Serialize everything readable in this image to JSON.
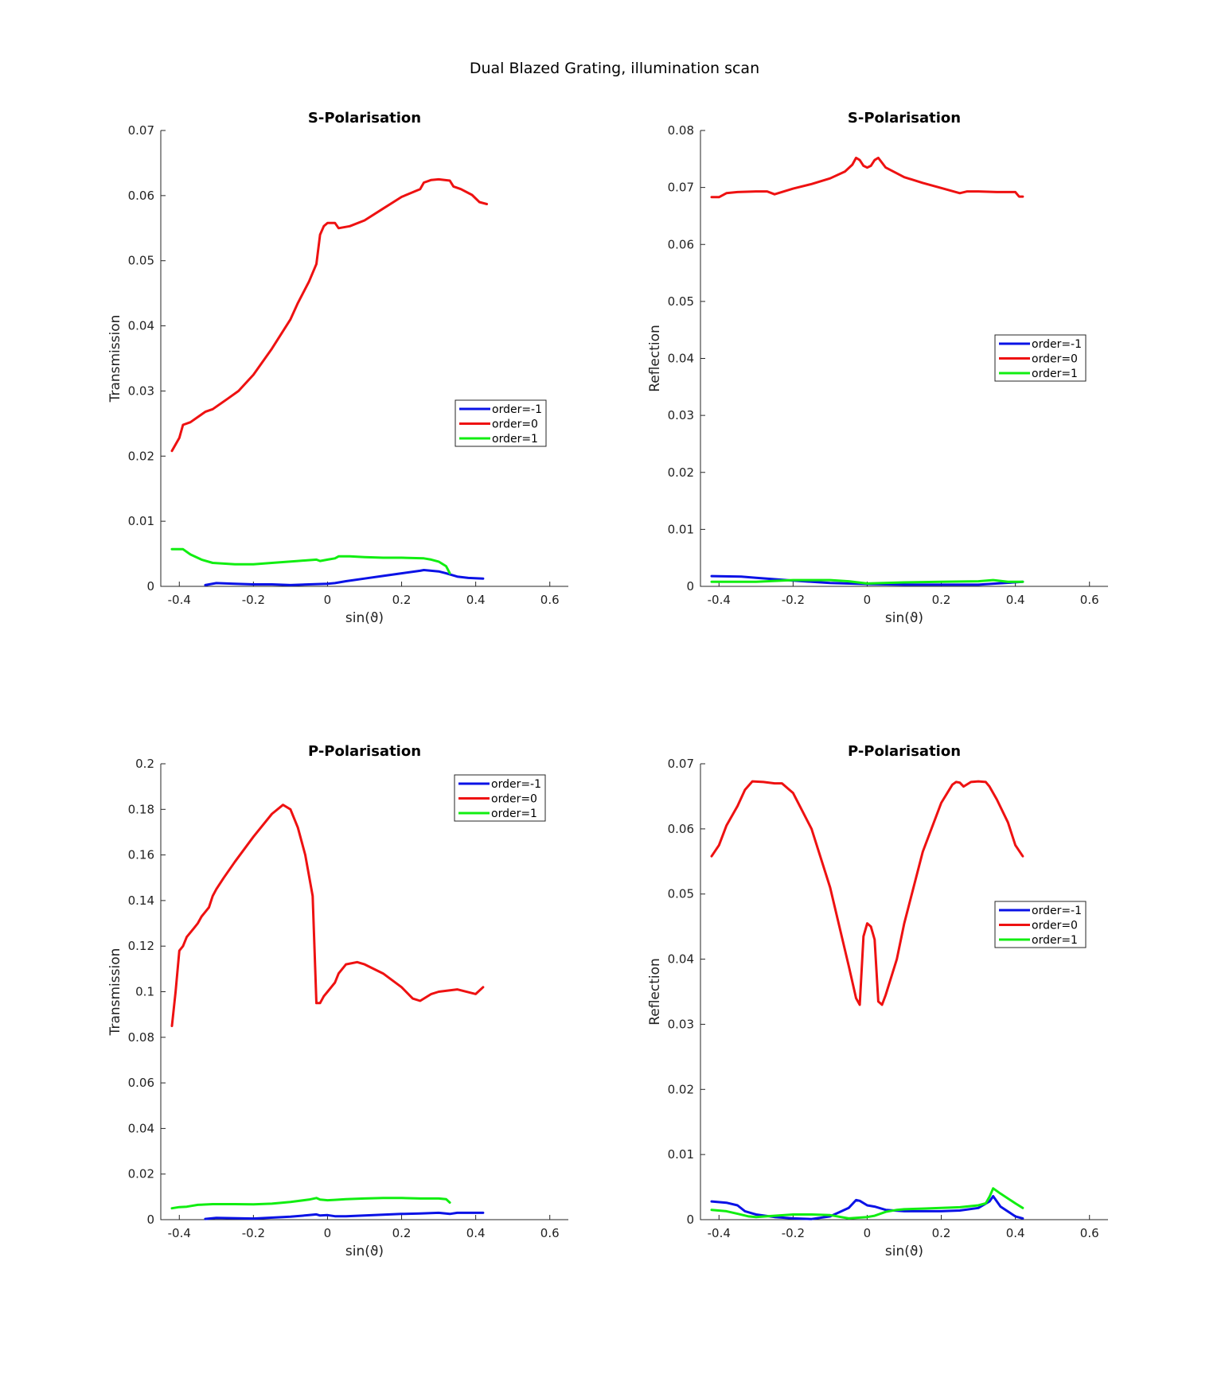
{
  "figure_title": "Dual Blazed Grating, illumination scan",
  "colors": {
    "order=-1": "#0a12e6",
    "order=0": "#ee1111",
    "order=1": "#11ee11"
  },
  "chart_data": [
    {
      "type": "line",
      "title": "S-Polarisation",
      "xlabel": "sin(ϑ)",
      "ylabel": "Transmission",
      "xlim": [
        -0.45,
        0.65
      ],
      "ylim": [
        0,
        0.07
      ],
      "xticks": [
        "-0.4",
        "-0.2",
        "0",
        "0.2",
        "0.4",
        "0.6"
      ],
      "yticks": [
        "0",
        "0.01",
        "0.02",
        "0.03",
        "0.04",
        "0.05",
        "0.06",
        "0.07"
      ],
      "legend": "middle-right",
      "series": [
        {
          "name": "order=-1",
          "x": [
            -0.33,
            -0.3,
            -0.25,
            -0.2,
            -0.15,
            -0.1,
            -0.05,
            0,
            0.02,
            0.05,
            0.1,
            0.15,
            0.2,
            0.25,
            0.26,
            0.3,
            0.32,
            0.35,
            0.38,
            0.42
          ],
          "y": [
            0.0002,
            0.0005,
            0.0004,
            0.0003,
            0.0003,
            0.0002,
            0.0003,
            0.0004,
            0.0005,
            0.0008,
            0.0012,
            0.0016,
            0.002,
            0.0024,
            0.0025,
            0.0023,
            0.002,
            0.0015,
            0.0013,
            0.0012
          ]
        },
        {
          "name": "order=0",
          "x": [
            -0.42,
            -0.4,
            -0.39,
            -0.37,
            -0.33,
            -0.31,
            -0.27,
            -0.24,
            -0.2,
            -0.15,
            -0.1,
            -0.08,
            -0.05,
            -0.03,
            -0.02,
            -0.01,
            0,
            0.02,
            0.03,
            0.06,
            0.1,
            0.15,
            0.2,
            0.25,
            0.26,
            0.28,
            0.3,
            0.33,
            0.34,
            0.36,
            0.39,
            0.41,
            0.43
          ],
          "y": [
            0.0208,
            0.0228,
            0.0248,
            0.0252,
            0.0268,
            0.0272,
            0.0288,
            0.03,
            0.0325,
            0.0365,
            0.041,
            0.0435,
            0.0468,
            0.0495,
            0.054,
            0.0553,
            0.0558,
            0.0558,
            0.055,
            0.0553,
            0.0562,
            0.058,
            0.0598,
            0.061,
            0.062,
            0.0624,
            0.0625,
            0.0623,
            0.0614,
            0.061,
            0.0601,
            0.059,
            0.0587
          ]
        },
        {
          "name": "order=1",
          "x": [
            -0.42,
            -0.39,
            -0.37,
            -0.34,
            -0.31,
            -0.25,
            -0.2,
            -0.15,
            -0.08,
            -0.03,
            -0.02,
            0,
            0.02,
            0.03,
            0.06,
            0.1,
            0.15,
            0.2,
            0.26,
            0.28,
            0.3,
            0.32,
            0.33
          ],
          "y": [
            0.0057,
            0.0057,
            0.0049,
            0.0041,
            0.0036,
            0.0034,
            0.0034,
            0.0036,
            0.0039,
            0.0041,
            0.0039,
            0.0041,
            0.0043,
            0.0046,
            0.0046,
            0.0045,
            0.0044,
            0.0044,
            0.0043,
            0.0041,
            0.0038,
            0.0031,
            0.002
          ]
        }
      ]
    },
    {
      "type": "line",
      "title": "S-Polarisation",
      "xlabel": "sin(ϑ)",
      "ylabel": "Reflection",
      "xlim": [
        -0.45,
        0.65
      ],
      "ylim": [
        0,
        0.08
      ],
      "xticks": [
        "-0.4",
        "-0.2",
        "0",
        "0.2",
        "0.4",
        "0.6"
      ],
      "yticks": [
        "0",
        "0.01",
        "0.02",
        "0.03",
        "0.04",
        "0.05",
        "0.06",
        "0.07",
        "0.08"
      ],
      "legend": "middle-right",
      "series": [
        {
          "name": "order=-1",
          "x": [
            -0.42,
            -0.34,
            -0.3,
            -0.2,
            -0.1,
            0,
            0.1,
            0.2,
            0.3,
            0.35,
            0.42
          ],
          "y": [
            0.0018,
            0.0017,
            0.0015,
            0.001,
            0.0006,
            0.0004,
            0.0003,
            0.0003,
            0.0003,
            0.0005,
            0.0008
          ]
        },
        {
          "name": "order=0",
          "x": [
            -0.42,
            -0.4,
            -0.38,
            -0.35,
            -0.3,
            -0.27,
            -0.25,
            -0.2,
            -0.15,
            -0.1,
            -0.06,
            -0.04,
            -0.03,
            -0.02,
            -0.01,
            0,
            0.01,
            0.02,
            0.03,
            0.05,
            0.1,
            0.15,
            0.2,
            0.25,
            0.27,
            0.3,
            0.35,
            0.4,
            0.41,
            0.42
          ],
          "y": [
            0.0683,
            0.0683,
            0.069,
            0.0692,
            0.0693,
            0.0693,
            0.0688,
            0.0698,
            0.0706,
            0.0716,
            0.0728,
            0.074,
            0.0752,
            0.0748,
            0.0738,
            0.0735,
            0.0738,
            0.0748,
            0.0752,
            0.0735,
            0.0718,
            0.0708,
            0.0699,
            0.069,
            0.0693,
            0.0693,
            0.0692,
            0.0692,
            0.0684,
            0.0684
          ]
        },
        {
          "name": "order=1",
          "x": [
            -0.42,
            -0.3,
            -0.2,
            -0.1,
            -0.05,
            0,
            0.1,
            0.2,
            0.3,
            0.34,
            0.38,
            0.42
          ],
          "y": [
            0.0008,
            0.0008,
            0.0011,
            0.0011,
            0.0009,
            0.0005,
            0.0007,
            0.0008,
            0.0009,
            0.0011,
            0.0008,
            0.0008
          ]
        }
      ]
    },
    {
      "type": "line",
      "title": "P-Polarisation",
      "xlabel": "sin(ϑ)",
      "ylabel": "Transmission",
      "xlim": [
        -0.45,
        0.65
      ],
      "ylim": [
        0,
        0.2
      ],
      "xticks": [
        "-0.4",
        "-0.2",
        "0",
        "0.2",
        "0.4",
        "0.6"
      ],
      "yticks": [
        "0",
        "0.02",
        "0.04",
        "0.06",
        "0.08",
        "0.1",
        "0.12",
        "0.14",
        "0.16",
        "0.18",
        "0.2"
      ],
      "legend": "top-right",
      "series": [
        {
          "name": "order=-1",
          "x": [
            -0.33,
            -0.3,
            -0.2,
            -0.1,
            -0.05,
            -0.03,
            -0.02,
            0,
            0.02,
            0.05,
            0.1,
            0.15,
            0.2,
            0.25,
            0.3,
            0.33,
            0.35,
            0.42
          ],
          "y": [
            0.0003,
            0.0008,
            0.0005,
            0.0013,
            0.002,
            0.0023,
            0.0018,
            0.002,
            0.0015,
            0.0015,
            0.0018,
            0.0022,
            0.0025,
            0.0027,
            0.003,
            0.0025,
            0.003,
            0.003
          ]
        },
        {
          "name": "order=0",
          "x": [
            -0.42,
            -0.41,
            -0.4,
            -0.39,
            -0.38,
            -0.36,
            -0.35,
            -0.34,
            -0.32,
            -0.31,
            -0.3,
            -0.28,
            -0.25,
            -0.2,
            -0.15,
            -0.12,
            -0.1,
            -0.08,
            -0.06,
            -0.04,
            -0.03,
            -0.02,
            -0.01,
            0,
            0.01,
            0.02,
            0.03,
            0.05,
            0.08,
            0.1,
            0.15,
            0.2,
            0.23,
            0.25,
            0.26,
            0.28,
            0.3,
            0.35,
            0.4,
            0.42
          ],
          "y": [
            0.085,
            0.1,
            0.118,
            0.12,
            0.124,
            0.128,
            0.13,
            0.133,
            0.137,
            0.142,
            0.145,
            0.15,
            0.157,
            0.168,
            0.178,
            0.182,
            0.18,
            0.172,
            0.16,
            0.142,
            0.095,
            0.095,
            0.098,
            0.1,
            0.102,
            0.104,
            0.108,
            0.112,
            0.113,
            0.112,
            0.108,
            0.102,
            0.097,
            0.096,
            0.097,
            0.099,
            0.1,
            0.101,
            0.099,
            0.102
          ]
        },
        {
          "name": "order=1",
          "x": [
            -0.42,
            -0.4,
            -0.38,
            -0.35,
            -0.31,
            -0.25,
            -0.2,
            -0.15,
            -0.1,
            -0.05,
            -0.03,
            -0.02,
            0,
            0.02,
            0.05,
            0.1,
            0.15,
            0.2,
            0.25,
            0.3,
            0.32,
            0.33
          ],
          "y": [
            0.005,
            0.0055,
            0.0057,
            0.0065,
            0.0068,
            0.0068,
            0.0067,
            0.007,
            0.0078,
            0.0088,
            0.0095,
            0.0088,
            0.0085,
            0.0087,
            0.009,
            0.0093,
            0.0095,
            0.0095,
            0.0093,
            0.0093,
            0.009,
            0.0075
          ]
        }
      ]
    },
    {
      "type": "line",
      "title": "P-Polarisation",
      "xlabel": "sin(ϑ)",
      "ylabel": "Reflection",
      "xlim": [
        -0.45,
        0.65
      ],
      "ylim": [
        0,
        0.07
      ],
      "xticks": [
        "-0.4",
        "-0.2",
        "0",
        "0.2",
        "0.4",
        "0.6"
      ],
      "yticks": [
        "0",
        "0.01",
        "0.02",
        "0.03",
        "0.04",
        "0.05",
        "0.06",
        "0.07"
      ],
      "legend": "middle-right",
      "series": [
        {
          "name": "order=-1",
          "x": [
            -0.42,
            -0.38,
            -0.35,
            -0.33,
            -0.3,
            -0.25,
            -0.2,
            -0.15,
            -0.1,
            -0.05,
            -0.03,
            -0.02,
            0,
            0.02,
            0.05,
            0.1,
            0.15,
            0.2,
            0.25,
            0.3,
            0.33,
            0.34,
            0.36,
            0.4,
            0.42
          ],
          "y": [
            0.0028,
            0.0026,
            0.0022,
            0.0013,
            0.0008,
            0.0004,
            0.0002,
            0.0001,
            0.0005,
            0.0018,
            0.003,
            0.0029,
            0.0022,
            0.002,
            0.0015,
            0.0013,
            0.0013,
            0.0013,
            0.0014,
            0.0018,
            0.0028,
            0.0036,
            0.002,
            0.0005,
            0.0002
          ]
        },
        {
          "name": "order=1",
          "x": [
            -0.42,
            -0.38,
            -0.35,
            -0.32,
            -0.3,
            -0.25,
            -0.2,
            -0.15,
            -0.1,
            -0.05,
            0,
            0.02,
            0.05,
            0.08,
            0.1,
            0.15,
            0.2,
            0.25,
            0.3,
            0.32,
            0.33,
            0.34,
            0.36,
            0.4,
            0.42
          ],
          "y": [
            0.0015,
            0.0013,
            0.0009,
            0.0005,
            0.0004,
            0.0006,
            0.0008,
            0.0008,
            0.0007,
            0.0002,
            0.0004,
            0.0006,
            0.0012,
            0.0015,
            0.0016,
            0.0017,
            0.0018,
            0.0019,
            0.0022,
            0.0025,
            0.0035,
            0.0048,
            0.004,
            0.0025,
            0.0018
          ]
        },
        {
          "name": "order=0",
          "x": [
            -0.42,
            -0.4,
            -0.38,
            -0.35,
            -0.33,
            -0.31,
            -0.28,
            -0.25,
            -0.23,
            -0.2,
            -0.15,
            -0.1,
            -0.05,
            -0.03,
            -0.02,
            -0.01,
            0,
            0.01,
            0.02,
            0.03,
            0.04,
            0.05,
            0.08,
            0.1,
            0.15,
            0.2,
            0.23,
            0.24,
            0.25,
            0.26,
            0.28,
            0.3,
            0.32,
            0.33,
            0.35,
            0.38,
            0.4,
            0.42
          ],
          "y": [
            0.0558,
            0.0575,
            0.0605,
            0.0635,
            0.066,
            0.0673,
            0.0672,
            0.067,
            0.067,
            0.0655,
            0.06,
            0.051,
            0.039,
            0.034,
            0.033,
            0.0435,
            0.0455,
            0.045,
            0.043,
            0.0335,
            0.033,
            0.0345,
            0.04,
            0.0455,
            0.0565,
            0.064,
            0.0668,
            0.0672,
            0.0671,
            0.0665,
            0.0672,
            0.0673,
            0.0672,
            0.0665,
            0.0645,
            0.061,
            0.0575,
            0.0558
          ]
        }
      ]
    }
  ]
}
